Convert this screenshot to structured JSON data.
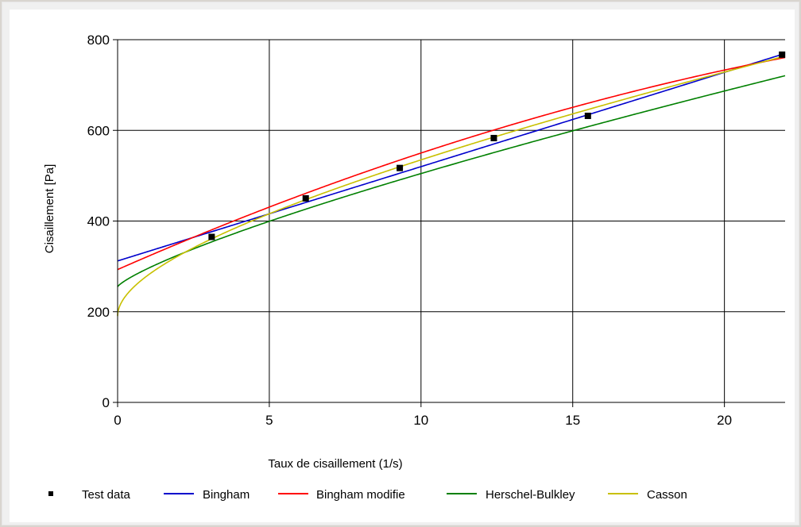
{
  "chart_data": {
    "type": "line",
    "xlabel": "Taux de cisaillement (1/s)",
    "ylabel": "Cisaillement [Pa]",
    "xlim": [
      0,
      22
    ],
    "ylim": [
      0,
      800
    ],
    "xticks": [
      "0",
      "5",
      "10",
      "15",
      "20"
    ],
    "yticks": [
      "0",
      "200",
      "400",
      "600",
      "800"
    ],
    "grid": true,
    "legend_position": "bottom",
    "scatter": {
      "name": "Test data",
      "color": "#000000",
      "points": [
        {
          "x": 3.1,
          "y": 365
        },
        {
          "x": 6.2,
          "y": 450
        },
        {
          "x": 9.3,
          "y": 517
        },
        {
          "x": 12.4,
          "y": 583
        },
        {
          "x": 15.5,
          "y": 632
        },
        {
          "x": 21.9,
          "y": 767
        }
      ]
    },
    "series": [
      {
        "name": "Bingham",
        "color": "#0000cc",
        "model": "bingham",
        "params": {
          "tau0": 312,
          "k": 20.8
        }
      },
      {
        "name": "Bingham modifie",
        "color": "#ff0000",
        "model": "bingham_mod",
        "params": {
          "tau0": 293,
          "k": 29.4,
          "c": -0.37
        }
      },
      {
        "name": "Herschel-Bulkley",
        "color": "#008000",
        "model": "hb",
        "params": {
          "tau0": 255,
          "k": 40.5,
          "n": 0.79
        }
      },
      {
        "name": "Casson",
        "color": "#c8c000",
        "model": "casson",
        "params": {
          "a": 13.8,
          "b": 2.95
        }
      }
    ]
  }
}
